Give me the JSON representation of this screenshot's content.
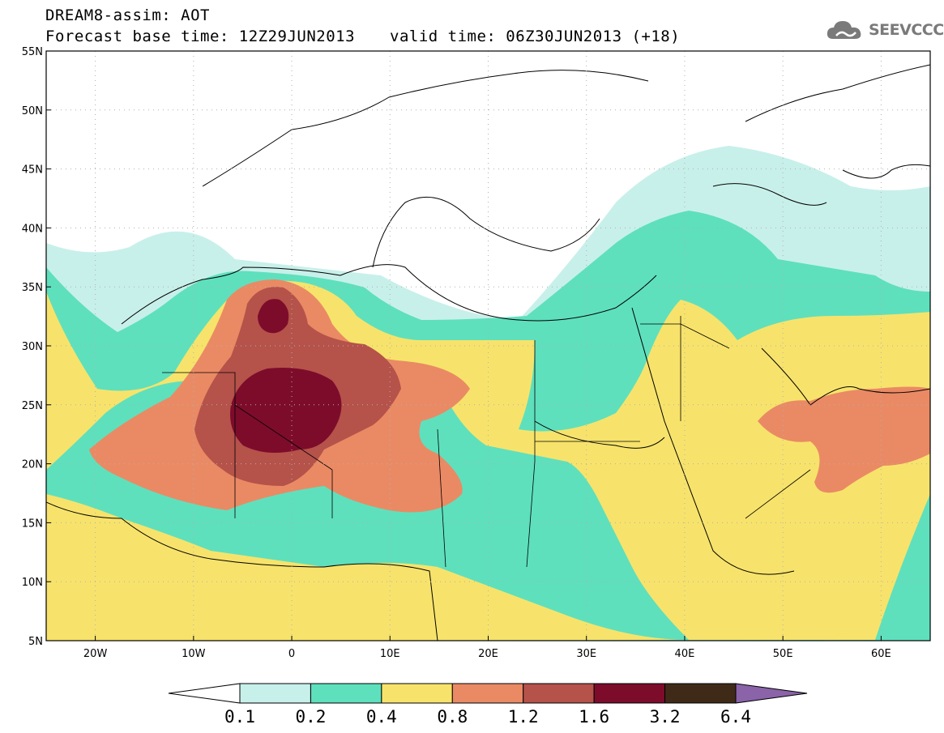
{
  "header": {
    "title_line1": "DREAM8-assim: AOT",
    "title_line2": "Forecast base time: 12Z29JUN2013",
    "valid_time": "valid time: 06Z30JUN2013 (+18)",
    "logo_text": "SEEVCCC",
    "logo_icon": "cloud-icon"
  },
  "map": {
    "variable": "AOT",
    "lat_labels": [
      "55N",
      "50N",
      "45N",
      "40N",
      "35N",
      "30N",
      "25N",
      "20N",
      "15N",
      "10N",
      "5N"
    ],
    "lon_labels": [
      "20W",
      "10W",
      "0",
      "10E",
      "20E",
      "30E",
      "40E",
      "50E",
      "60E"
    ],
    "grid": "dotted"
  },
  "legend": {
    "levels": [
      "0.1",
      "0.2",
      "0.4",
      "0.8",
      "1.2",
      "1.6",
      "3.2",
      "6.4"
    ],
    "colors": [
      "#ffffff",
      "#c8f0ea",
      "#5ee0bd",
      "#f7e36b",
      "#ea8a64",
      "#b5524a",
      "#7d0c2b",
      "#3f2a18",
      "#8a63a8"
    ]
  }
}
